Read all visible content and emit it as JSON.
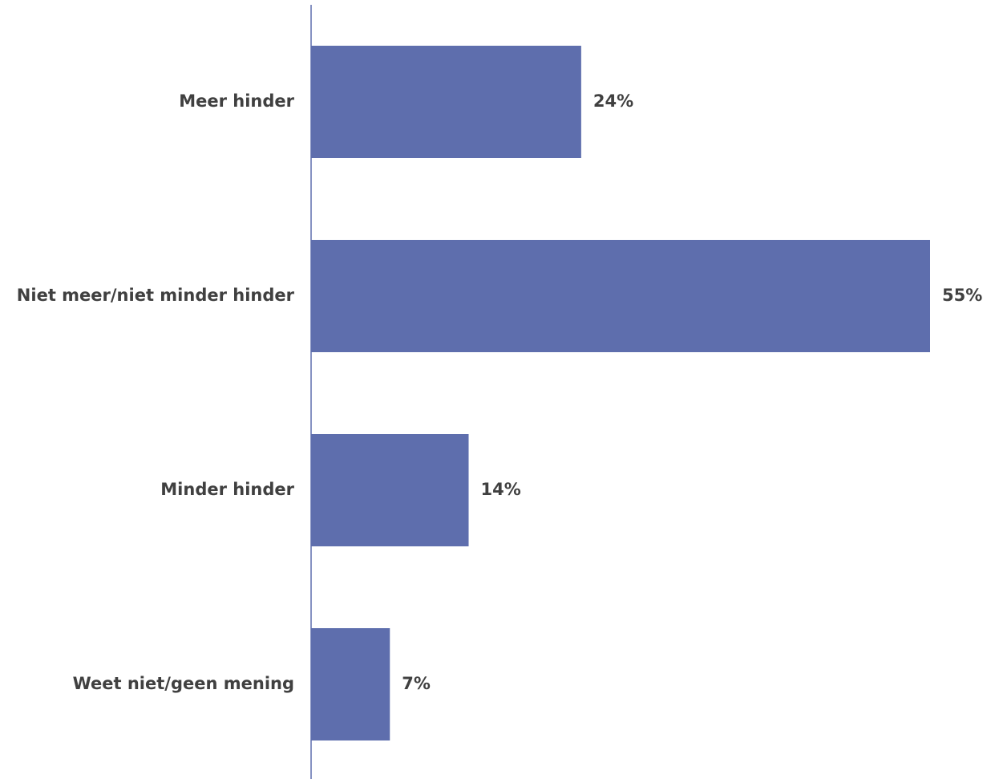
{
  "chart_data": {
    "type": "bar",
    "orientation": "horizontal",
    "categories": [
      "Meer hinder",
      "Niet meer/niet minder hinder",
      "Minder hinder",
      "Weet niet/geen mening"
    ],
    "values": [
      24,
      55,
      14,
      7
    ],
    "value_labels": [
      "24%",
      "55%",
      "14%",
      "7%"
    ],
    "unit": "%",
    "xlim": [
      0,
      55
    ],
    "grid": false,
    "legend": "none",
    "bar_color": "#5E6EAD",
    "axis_color": "#5E6EAD",
    "text_color": "#404040"
  }
}
